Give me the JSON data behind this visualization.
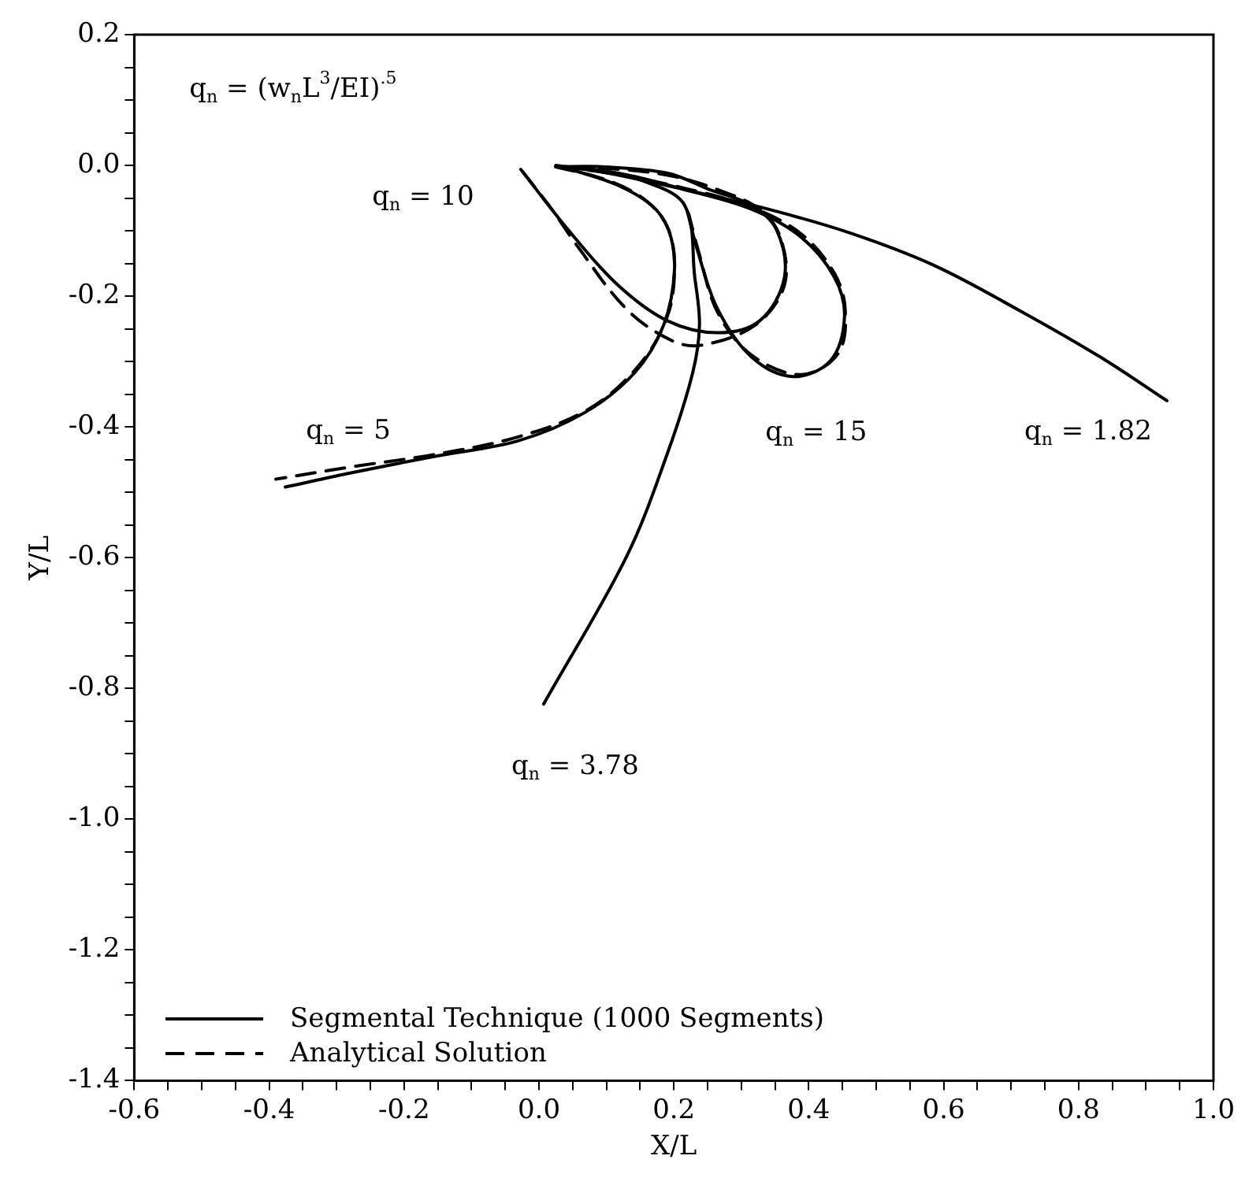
{
  "chart_data": {
    "type": "line",
    "xlabel": "X/L",
    "ylabel": "Y/L",
    "xlim": [
      -0.6,
      1.0
    ],
    "ylim": [
      -1.4,
      0.2
    ],
    "xticks": [
      -0.6,
      {
        "value": -0.55,
        "label": null
      },
      {
        "value": -0.5,
        "label": null
      },
      {
        "value": -0.45,
        "label": null
      },
      -0.4,
      {
        "value": -0.35,
        "label": null
      },
      {
        "value": -0.3,
        "label": null
      },
      {
        "value": -0.25,
        "label": null
      },
      -0.2,
      {
        "value": -0.15,
        "label": null
      },
      {
        "value": -0.1,
        "label": null
      },
      {
        "value": -0.05,
        "label": null
      },
      {
        "value": 0,
        "label": "0.0"
      },
      {
        "value": 0.05,
        "label": null
      },
      {
        "value": 0.1,
        "label": null
      },
      {
        "value": 0.15,
        "label": null
      },
      0.2,
      {
        "value": 0.25,
        "label": null
      },
      {
        "value": 0.3,
        "label": null
      },
      {
        "value": 0.35,
        "label": null
      },
      0.4,
      {
        "value": 0.45,
        "label": null
      },
      {
        "value": 0.5,
        "label": null
      },
      {
        "value": 0.55,
        "label": null
      },
      0.6,
      {
        "value": 0.65,
        "label": null
      },
      {
        "value": 0.7,
        "label": null
      },
      {
        "value": 0.75,
        "label": null
      },
      0.8,
      {
        "value": 0.85,
        "label": null
      },
      {
        "value": 0.9,
        "label": null
      },
      {
        "value": 0.95,
        "label": null
      },
      {
        "value": 1.0,
        "label": "1.0"
      }
    ],
    "yticks": [
      {
        "value": -1.4,
        "label": "-1.4"
      },
      {
        "value": -1.35,
        "label": null
      },
      {
        "value": -1.3,
        "label": null
      },
      {
        "value": -1.25,
        "label": null
      },
      -1.2,
      {
        "value": -1.15,
        "label": null
      },
      {
        "value": -1.1,
        "label": null
      },
      {
        "value": -1.05,
        "label": null
      },
      {
        "value": -1,
        "label": "-1.0"
      },
      {
        "value": -0.95,
        "label": null
      },
      {
        "value": -0.9,
        "label": null
      },
      {
        "value": -0.85,
        "label": null
      },
      -0.8,
      {
        "value": -0.75,
        "label": null
      },
      {
        "value": -0.7,
        "label": null
      },
      {
        "value": -0.65,
        "label": null
      },
      -0.6,
      {
        "value": -0.55,
        "label": null
      },
      {
        "value": -0.5,
        "label": null
      },
      {
        "value": -0.45,
        "label": null
      },
      -0.4,
      {
        "value": -0.35,
        "label": null
      },
      {
        "value": -0.3,
        "label": null
      },
      {
        "value": -0.25,
        "label": null
      },
      -0.2,
      {
        "value": -0.15,
        "label": null
      },
      {
        "value": -0.1,
        "label": null
      },
      {
        "value": -0.05,
        "label": null
      },
      {
        "value": 0,
        "label": "0.0"
      },
      {
        "value": 0.05,
        "label": null
      },
      {
        "value": 0.1,
        "label": null
      },
      {
        "value": 0.15,
        "label": null
      },
      0.2
    ],
    "legend": "bottom left",
    "marker": "none",
    "series": [
      {
        "name": "Segmental Technique (1000 Segments)",
        "color": "#000000",
        "line_style": "solid",
        "x": [
          0.025,
          0.093,
          0.216,
          0.34,
          0.463,
          0.586,
          0.709,
          0.832,
          0.931
        ],
        "values": [
          0,
          -0.01,
          -0.037,
          -0.067,
          -0.104,
          -0.153,
          -0.22,
          -0.293,
          -0.36
        ]
      },
      {
        "color": "#000000",
        "line_style": "solid",
        "x": [
          0.025,
          0.08,
          0.155,
          0.216,
          0.231,
          0.238,
          0.228,
          0.191,
          0.13,
          0.007
        ],
        "values": [
          -0.002,
          -0.006,
          -0.024,
          -0.061,
          -0.171,
          -0.244,
          -0.317,
          -0.439,
          -0.598,
          -0.824
        ]
      },
      {
        "color": "#000000",
        "line_style": "solid",
        "x": [
          0.025,
          0.056,
          0.118,
          0.167,
          0.192,
          0.201,
          0.185,
          0.142,
          0.068,
          -0.03,
          -0.154,
          -0.277,
          -0.376
        ],
        "values": [
          -0.002,
          -0.009,
          -0.031,
          -0.061,
          -0.098,
          -0.159,
          -0.244,
          -0.317,
          -0.378,
          -0.421,
          -0.445,
          -0.47,
          -0.492
        ]
      },
      {
        "color": "#000000",
        "line_style": "solid",
        "x": [
          -0.027,
          0.043,
          0.117,
          0.191,
          0.265,
          0.327,
          0.364,
          0.352,
          0.315,
          0.253,
          0.191,
          0.093,
          0.025
        ],
        "values": [
          -0.006,
          -0.098,
          -0.183,
          -0.238,
          -0.256,
          -0.238,
          -0.171,
          -0.098,
          -0.061,
          -0.037,
          -0.012,
          -0.002,
          -0.002
        ]
      },
      {
        "color": "#000000",
        "line_style": "solid",
        "x": [
          0.025,
          0.118,
          0.216,
          0.315,
          0.389,
          0.438,
          0.453,
          0.432,
          0.376,
          0.315,
          0.265,
          0.235,
          0.22
        ],
        "values": [
          -0.002,
          -0.012,
          -0.037,
          -0.067,
          -0.11,
          -0.171,
          -0.232,
          -0.299,
          -0.323,
          -0.293,
          -0.22,
          -0.13,
          -0.07
        ]
      },
      {
        "name": "Analytical Solution",
        "color": "#000000",
        "line_style": "dashed",
        "x": [
          0.025,
          0.105,
          0.16,
          0.192,
          0.201,
          0.19,
          0.149,
          0.075,
          -0.03,
          -0.154,
          -0.277,
          -0.39
        ],
        "values": [
          -0.002,
          -0.024,
          -0.055,
          -0.098,
          -0.159,
          -0.232,
          -0.305,
          -0.372,
          -0.415,
          -0.442,
          -0.461,
          -0.48
        ]
      },
      {
        "color": "#000000",
        "line_style": "dashed",
        "x": [
          -0.024,
          0.019,
          0.056,
          0.13,
          0.197,
          0.241,
          0.321,
          0.364,
          0.358,
          0.327,
          0.265,
          0.191,
          0.093,
          0.035
        ],
        "values": [
          -0.01,
          -0.067,
          -0.122,
          -0.22,
          -0.268,
          -0.275,
          -0.244,
          -0.183,
          -0.11,
          -0.067,
          -0.037,
          -0.015,
          -0.004,
          -0.003
        ]
      },
      {
        "color": "#000000",
        "line_style": "dashed",
        "x": [
          0.03,
          0.118,
          0.216,
          0.315,
          0.389,
          0.438,
          0.454,
          0.444,
          0.389,
          0.315,
          0.265,
          0.237,
          0.222
        ],
        "values": [
          -0.002,
          -0.014,
          -0.035,
          -0.064,
          -0.105,
          -0.165,
          -0.22,
          -0.287,
          -0.32,
          -0.29,
          -0.225,
          -0.133,
          -0.074
        ]
      }
    ],
    "annotations": [
      "q$_{n}$ = (w$_{n}$L$^{3}$/EI)$^{.5}$",
      {
        "text": "q$_{n}$ = 10",
        "x": -0.027,
        "y": -0.006
      },
      {
        "text": "q$_{n}$ = 5",
        "x": -0.376,
        "y": -0.492
      },
      {
        "text": "q$_{n}$ = 15",
        "x": 0.376,
        "y": -0.323
      },
      {
        "text": "q$_{n}$ = 1.82",
        "x": 0.931,
        "y": -0.36
      },
      {
        "text": "q$_{n}$ = 3.78",
        "x": 0.007,
        "y": -0.824
      }
    ]
  }
}
